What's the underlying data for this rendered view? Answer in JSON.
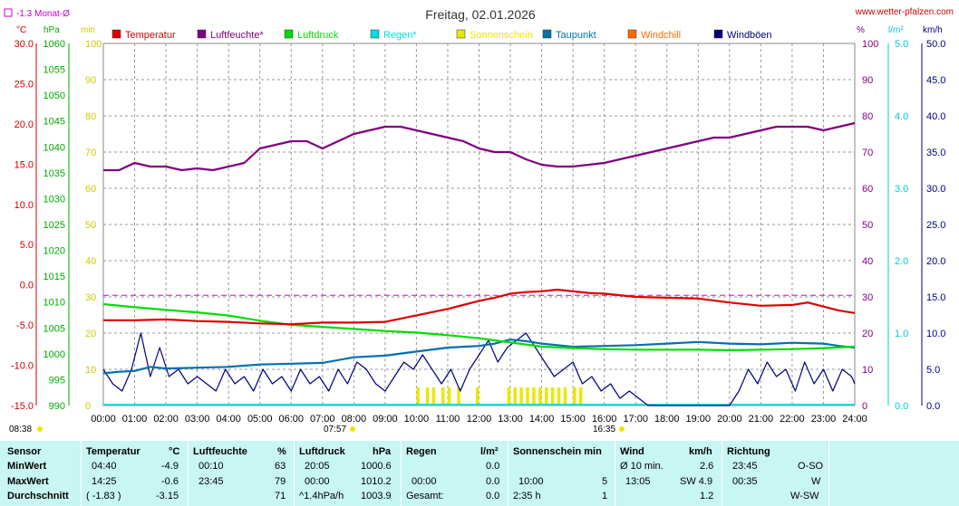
{
  "header": {
    "title": "Freitag, 02.01.2026",
    "site": "www.wetter-pfalzen.com",
    "monat_label": "-1.3 Monat-Ø"
  },
  "units": {
    "left": [
      "°C",
      "hPa",
      "min"
    ],
    "right": [
      "%",
      "l/m²",
      "km/h"
    ]
  },
  "legend": [
    {
      "label": "Temperatur",
      "color": "#dd0000"
    },
    {
      "label": "Luftfeuchte*",
      "color": "#800080"
    },
    {
      "label": "Luftdruck",
      "color": "#00dd00"
    },
    {
      "label": "Regen*",
      "color": "#00e0e0"
    },
    {
      "label": "Sonnenschein",
      "color": "#e8e800"
    },
    {
      "label": "Taupunkt",
      "color": "#0070b0"
    },
    {
      "label": "Windchill",
      "color": "#ff6a00"
    },
    {
      "label": "Windböen",
      "color": "#000080"
    }
  ],
  "events": {
    "sunrise_label": "08:38",
    "sun_mark1": "07:57",
    "sun_mark2": "16:35"
  },
  "chart_data": {
    "type": "line",
    "xlim": [
      0,
      24
    ],
    "x_ticks": [
      "00:00",
      "01:00",
      "02:00",
      "03:00",
      "04:00",
      "05:00",
      "06:00",
      "07:00",
      "08:00",
      "09:00",
      "10:00",
      "11:00",
      "12:00",
      "13:00",
      "14:00",
      "15:00",
      "16:00",
      "17:00",
      "18:00",
      "19:00",
      "20:00",
      "21:00",
      "22:00",
      "23:00",
      "24:00"
    ],
    "axes": {
      "temperature": {
        "unit": "°C",
        "ylim": [
          -15,
          30
        ],
        "ticks": [
          "30.0",
          "25.0",
          "20.0",
          "15.0",
          "10.0",
          "5.0",
          "0.0",
          "-5.0",
          "-10.0",
          "-15.0"
        ]
      },
      "pressure": {
        "unit": "hPa",
        "ylim": [
          990,
          1060
        ],
        "ticks": [
          "1060",
          "1055",
          "1050",
          "1045",
          "1040",
          "1035",
          "1030",
          "1025",
          "1020",
          "1015",
          "1010",
          "1005",
          "1000",
          "995",
          "990"
        ]
      },
      "sunshine": {
        "unit": "min",
        "ylim": [
          0,
          100
        ],
        "ticks": [
          "100",
          "90",
          "80",
          "70",
          "60",
          "50",
          "40",
          "30",
          "20",
          "10",
          "0"
        ]
      },
      "humidity": {
        "unit": "%",
        "ylim": [
          0,
          100
        ],
        "ticks": [
          "100",
          "90",
          "80",
          "70",
          "60",
          "50",
          "40",
          "30",
          "20",
          "10",
          "0"
        ]
      },
      "rain": {
        "unit": "l/m²",
        "ylim": [
          0,
          5
        ],
        "ticks": [
          "5.0",
          "4.0",
          "3.0",
          "2.0",
          "1.0",
          "0.0"
        ]
      },
      "wind": {
        "unit": "km/h",
        "ylim": [
          0,
          50
        ],
        "ticks": [
          "50.0",
          "45.0",
          "40.0",
          "35.0",
          "30.0",
          "25.0",
          "20.0",
          "15.0",
          "10.0",
          "5.0",
          "0.0"
        ]
      }
    },
    "monthly_avg_temp": -1.3,
    "series": [
      {
        "name": "Temperatur",
        "axis": "temperature",
        "color": "#dd0000",
        "x": [
          0,
          1,
          2,
          3,
          4,
          5,
          6,
          7,
          8,
          9,
          10,
          11,
          12,
          12.5,
          13,
          13.5,
          14,
          14.5,
          15,
          15.5,
          16,
          17,
          18,
          19,
          20,
          21,
          22,
          22.5,
          23,
          23.5,
          24
        ],
        "y": [
          -4.4,
          -4.4,
          -4.3,
          -4.5,
          -4.6,
          -4.8,
          -4.9,
          -4.7,
          -4.7,
          -4.6,
          -3.8,
          -3.0,
          -2.0,
          -1.6,
          -1.1,
          -0.9,
          -0.8,
          -0.6,
          -0.8,
          -1.0,
          -1.1,
          -1.5,
          -1.6,
          -1.7,
          -2.2,
          -2.6,
          -2.5,
          -2.2,
          -2.7,
          -3.2,
          -3.5
        ]
      },
      {
        "name": "Luftfeuchte*",
        "axis": "humidity",
        "color": "#800080",
        "x": [
          0,
          0.5,
          1,
          1.5,
          2,
          2.5,
          3,
          3.5,
          4,
          4.5,
          5,
          5.5,
          6,
          6.5,
          7,
          7.5,
          8,
          8.5,
          9,
          9.5,
          10,
          10.5,
          11,
          11.5,
          12,
          12.5,
          13,
          13.5,
          14,
          14.5,
          15,
          15.5,
          16,
          16.5,
          17,
          17.5,
          18,
          18.5,
          19,
          19.5,
          20,
          20.5,
          21,
          21.5,
          22,
          22.5,
          23,
          23.5,
          24
        ],
        "y": [
          65,
          65,
          67,
          66,
          66,
          65,
          65.5,
          65,
          66,
          67,
          71,
          72,
          73,
          73,
          71,
          73,
          75,
          76,
          77,
          77,
          76,
          75,
          74,
          73,
          71,
          70,
          70,
          68,
          66.5,
          66,
          66,
          66.5,
          67,
          68,
          69,
          70,
          71,
          72,
          73,
          74,
          74,
          75,
          76,
          77,
          77,
          77,
          76,
          77,
          78
        ]
      },
      {
        "name": "Luftdruck",
        "axis": "pressure",
        "color": "#00dd00",
        "x": [
          0,
          1,
          2,
          3,
          4,
          5,
          6,
          7,
          8,
          9,
          10,
          11,
          12,
          12.5,
          13,
          13.5,
          14,
          15,
          16,
          17,
          18,
          19,
          20,
          21,
          22,
          23,
          24
        ],
        "y": [
          1009.6,
          1009.0,
          1008.5,
          1008.0,
          1007.4,
          1006.4,
          1005.6,
          1005.2,
          1004.8,
          1004.4,
          1004.1,
          1003.6,
          1003.0,
          1002.6,
          1002.2,
          1001.8,
          1001.4,
          1001.1,
          1000.9,
          1000.8,
          1000.8,
          1000.8,
          1000.7,
          1000.8,
          1000.9,
          1001.1,
          1001.4
        ]
      },
      {
        "name": "Taupunkt",
        "axis": "temperature",
        "color": "#0070b0",
        "x": [
          0,
          0.5,
          1,
          1.5,
          2,
          3,
          4,
          5,
          6,
          7,
          8,
          9,
          10,
          11,
          12,
          12.5,
          13,
          13.5,
          14,
          14.5,
          15,
          16,
          17,
          18,
          19,
          20,
          21,
          22,
          23,
          23.5,
          24
        ],
        "y": [
          -11.0,
          -10.8,
          -10.7,
          -10.2,
          -10.4,
          -10.3,
          -10.2,
          -9.9,
          -9.8,
          -9.7,
          -9.0,
          -8.8,
          -8.3,
          -7.8,
          -7.6,
          -7.3,
          -6.8,
          -7.0,
          -7.3,
          -7.5,
          -7.7,
          -7.6,
          -7.5,
          -7.3,
          -7.1,
          -7.3,
          -7.4,
          -7.2,
          -7.3,
          -7.6,
          -7.8
        ]
      },
      {
        "name": "Windböen",
        "axis": "wind",
        "color": "#000080",
        "x": [
          0,
          0.3,
          0.6,
          0.9,
          1.2,
          1.5,
          1.8,
          2.1,
          2.4,
          2.7,
          3.0,
          3.3,
          3.6,
          3.9,
          4.2,
          4.5,
          4.8,
          5.1,
          5.4,
          5.7,
          6.0,
          6.3,
          6.6,
          6.9,
          7.2,
          7.5,
          7.8,
          8.1,
          8.4,
          8.7,
          9.0,
          9.3,
          9.6,
          9.9,
          10.2,
          10.5,
          10.8,
          11.1,
          11.4,
          11.7,
          12.0,
          12.3,
          12.6,
          12.9,
          13.2,
          13.5,
          13.8,
          14.1,
          14.4,
          14.7,
          15.0,
          15.3,
          15.6,
          15.9,
          16.2,
          16.5,
          16.8,
          17.1,
          17.4,
          17.7,
          18.0,
          20.0,
          20.3,
          20.6,
          20.9,
          21.2,
          21.5,
          21.8,
          22.1,
          22.4,
          22.7,
          23.0,
          23.3,
          23.6,
          23.9,
          24.0
        ],
        "y": [
          5,
          3,
          2,
          5,
          10,
          4,
          8,
          4,
          5,
          3,
          4,
          3,
          2,
          5,
          3,
          4,
          2,
          5,
          3,
          4,
          2,
          5,
          3,
          4,
          2,
          5,
          3,
          6,
          5,
          3,
          2,
          4,
          6,
          5,
          7,
          5,
          3,
          5,
          2,
          5,
          7,
          9,
          6,
          8,
          9,
          10,
          8,
          6,
          4,
          5,
          6,
          3,
          4,
          2,
          3,
          1,
          2,
          1,
          0,
          0,
          0,
          0,
          2,
          5,
          3,
          6,
          4,
          5,
          2,
          6,
          3,
          5,
          2,
          5,
          4,
          3
        ]
      }
    ],
    "sunshine_blocks": [
      [
        10.0,
        10.1
      ],
      [
        10.3,
        10.4
      ],
      [
        10.5,
        10.6
      ],
      [
        10.8,
        10.9
      ],
      [
        11.0,
        11.1
      ],
      [
        11.3,
        11.4
      ],
      [
        11.9,
        12.0
      ],
      [
        12.9,
        13.0
      ],
      [
        13.1,
        13.2
      ],
      [
        13.3,
        13.4
      ],
      [
        13.5,
        13.6
      ],
      [
        13.7,
        13.8
      ],
      [
        13.9,
        14.0
      ],
      [
        14.1,
        14.2
      ],
      [
        14.3,
        14.4
      ],
      [
        14.5,
        14.6
      ],
      [
        14.7,
        14.8
      ],
      [
        15.0,
        15.1
      ],
      [
        15.2,
        15.3
      ]
    ]
  },
  "stats": {
    "rows": [
      "Sensor",
      "MinWert",
      "MaxWert",
      "Durchschnitt"
    ],
    "temp": {
      "h1": "Temperatur",
      "h2": "°C",
      "min_t": "04:40",
      "min_v": "-4.9",
      "max_t": "14:25",
      "max_v": "-0.6",
      "avg_l": "( -1.83 )",
      "avg_v": "-3.15"
    },
    "hum": {
      "h1": "Luftfeuchte",
      "h2": "%",
      "min_t": "00:10",
      "min_v": "63",
      "max_t": "23:45",
      "max_v": "79",
      "avg_v": "71"
    },
    "press": {
      "h1": "Luftdruck",
      "h2": "hPa",
      "min_t": "20:05",
      "min_v": "1000.6",
      "max_t": "00:00",
      "max_v": "1010.2",
      "avg_l": "^1.4hPa/h",
      "avg_v": "1003.9"
    },
    "rain": {
      "h1": "Regen",
      "h2": "l/m²",
      "min_v": "0.0",
      "max_t": "00:00",
      "max_v": "0.0",
      "avg_l": "Gesamt:",
      "avg_v": "0.0"
    },
    "sun": {
      "h1": "Sonnenschein min",
      "max_t": "10:00",
      "max_v": "5",
      "avg_l": "2:35 h",
      "avg_v": "1"
    },
    "wind": {
      "h1": "Wind",
      "h2": "km/h",
      "min_l": "Ø 10 min.",
      "min_v": "2.6",
      "max_t": "13:05",
      "max_v": "SW 4.9",
      "avg_v": "1.2"
    },
    "dir": {
      "h1": "Richtung",
      "min_t": "23:45",
      "min_v": "O-SO",
      "max_t": "00:35",
      "max_v": "W",
      "avg_v": "W-SW"
    }
  }
}
